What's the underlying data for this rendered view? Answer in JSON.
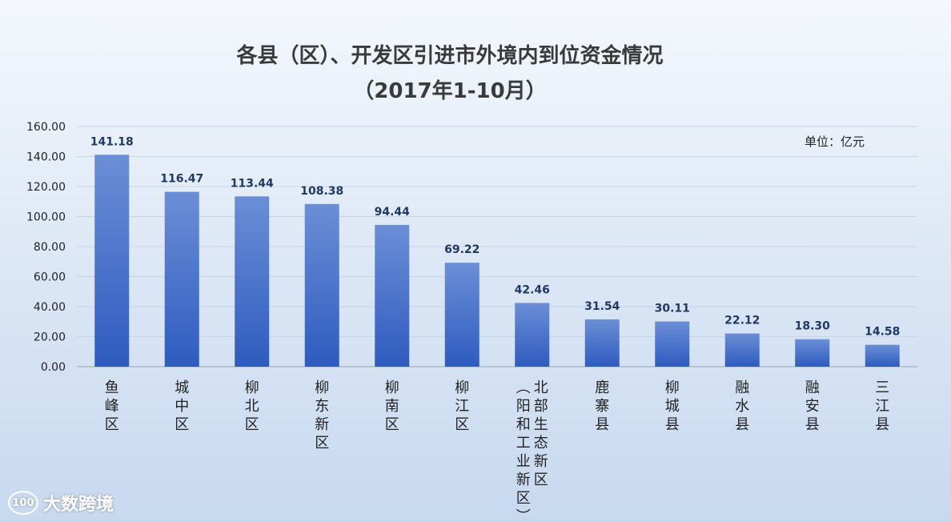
{
  "chart_data": {
    "type": "bar",
    "title": "各县（区）、开发区引进市外境内到位资金情况",
    "subtitle": "（2017年1-10月）",
    "unit_label": "单位：亿元",
    "ylim": [
      0,
      160
    ],
    "yticks": [
      "0.00",
      "20.00",
      "40.00",
      "60.00",
      "80.00",
      "100.00",
      "120.00",
      "140.00",
      "160.00"
    ],
    "grid": true,
    "categories": [
      "鱼峰区",
      "城中区",
      "柳北区",
      "柳东新区",
      "柳南区",
      "柳江区",
      "北部生态新区（阳和工业新区）",
      "鹿寨县",
      "柳城县",
      "融水县",
      "融安县",
      "三江县"
    ],
    "values": [
      141.18,
      116.47,
      113.44,
      108.38,
      94.44,
      69.22,
      42.46,
      31.54,
      30.11,
      22.12,
      18.3,
      14.58
    ],
    "value_labels": [
      "141.18",
      "116.47",
      "113.44",
      "108.38",
      "94.44",
      "69.22",
      "42.46",
      "31.54",
      "30.11",
      "22.12",
      "18.30",
      "14.58"
    ],
    "bar_color_top": "#6b8fd6",
    "bar_color_bottom": "#2e5bbf"
  },
  "watermark": {
    "logo_text": "100",
    "text": "大数跨境"
  }
}
